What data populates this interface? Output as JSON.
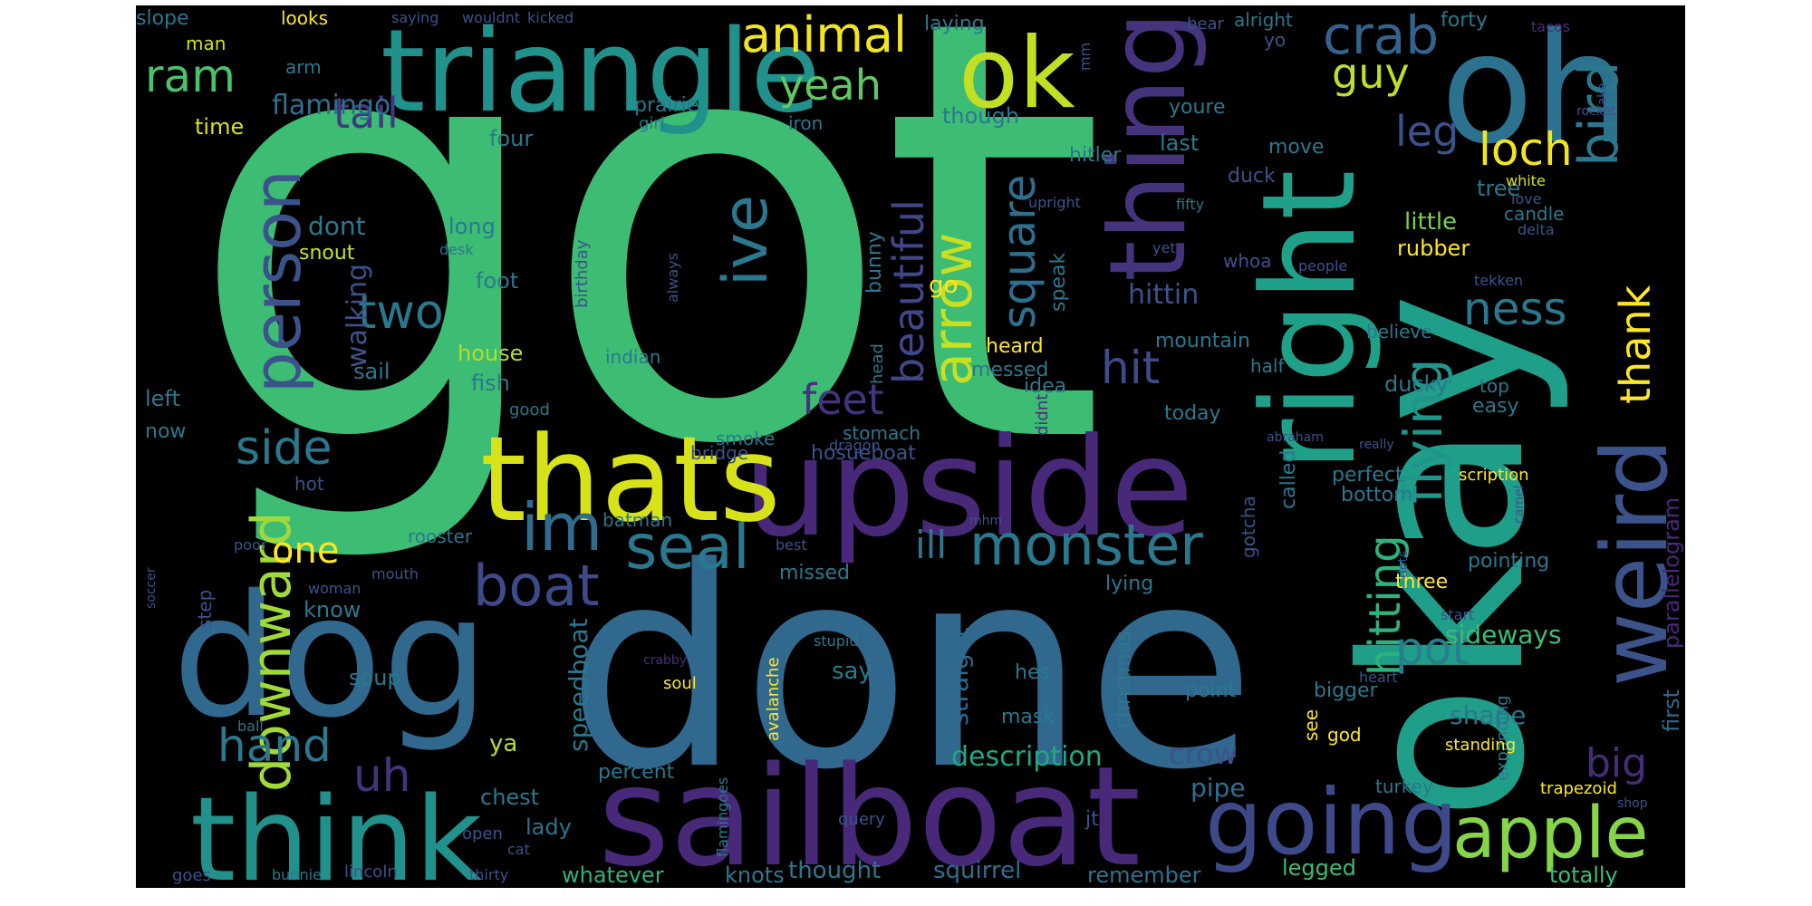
{
  "words": [
    {
      "text": "got",
      "color": "#3dbc74"
    },
    {
      "text": "done",
      "color": "#31688e"
    },
    {
      "text": "okay",
      "color": "#1f9e89"
    },
    {
      "text": "upside",
      "color": "#482878"
    },
    {
      "text": "sailboat",
      "color": "#482878"
    },
    {
      "text": "triangle",
      "color": "#21918c"
    },
    {
      "text": "dog",
      "color": "#31688e"
    },
    {
      "text": "think",
      "color": "#21918c"
    },
    {
      "text": "oh",
      "color": "#2c728e"
    },
    {
      "text": "thats",
      "color": "#d8e219"
    },
    {
      "text": "right",
      "color": "#1fa088"
    },
    {
      "text": "thing",
      "color": "#46337e"
    },
    {
      "text": "ok",
      "color": "#c2df23"
    },
    {
      "text": "weird",
      "color": "#3b528b"
    },
    {
      "text": "going",
      "color": "#3e4989"
    },
    {
      "text": "apple",
      "color": "#86d549"
    },
    {
      "text": "monster",
      "color": "#2a788e"
    },
    {
      "text": "seal",
      "color": "#2a788e"
    },
    {
      "text": "boat",
      "color": "#3e4989"
    },
    {
      "text": "downward",
      "color": "#a0da39"
    },
    {
      "text": "person",
      "color": "#3b528b"
    },
    {
      "text": "im",
      "color": "#2f6c8e"
    },
    {
      "text": "arrow",
      "color": "#c8e020"
    },
    {
      "text": "ive",
      "color": "#2a788e"
    },
    {
      "text": "beautiful",
      "color": "#3f4788"
    },
    {
      "text": "flying",
      "color": "#1f958b"
    },
    {
      "text": "hitting",
      "color": "#2db27d"
    },
    {
      "text": "loch",
      "color": "#f1e51d"
    },
    {
      "text": "bird",
      "color": "#2a788e"
    },
    {
      "text": "crab",
      "color": "#33638d"
    },
    {
      "text": "animal",
      "color": "#f1e51d"
    },
    {
      "text": "yeah",
      "color": "#5ec962"
    },
    {
      "text": "ram",
      "color": "#4ac16d"
    },
    {
      "text": "tail",
      "color": "#453781"
    },
    {
      "text": "two",
      "color": "#2a788e"
    },
    {
      "text": "side",
      "color": "#2a788e"
    },
    {
      "text": "hand",
      "color": "#2a788e"
    },
    {
      "text": "uh",
      "color": "#46337e"
    },
    {
      "text": "pot",
      "color": "#277f8e"
    },
    {
      "text": "ness",
      "color": "#2a788e"
    },
    {
      "text": "hit",
      "color": "#3e4a89"
    },
    {
      "text": "thank",
      "color": "#fde725"
    },
    {
      "text": "square",
      "color": "#2e6e8e"
    },
    {
      "text": "feet",
      "color": "#46337e"
    },
    {
      "text": "leg",
      "color": "#3b528b"
    },
    {
      "text": "guy",
      "color": "#bddf26"
    },
    {
      "text": "big",
      "color": "#472c7a"
    },
    {
      "text": "ill",
      "color": "#2a788e"
    },
    {
      "text": "one",
      "color": "#fde725"
    },
    {
      "text": "flamingo",
      "color": "#2e6e8e"
    },
    {
      "text": "walking",
      "color": "#3b528b"
    },
    {
      "text": "crow",
      "color": "#3b528b"
    },
    {
      "text": "description",
      "color": "#22a785"
    },
    {
      "text": "sideways",
      "color": "#3dbc74"
    },
    {
      "text": "shape",
      "color": "#2a788e"
    },
    {
      "text": "pipe",
      "color": "#2e6e8e"
    },
    {
      "text": "speedboat",
      "color": "#2a788e"
    },
    {
      "text": "straight",
      "color": "#31688e"
    },
    {
      "text": "hittin",
      "color": "#3b528b"
    },
    {
      "text": "rubber",
      "color": "#fde725"
    },
    {
      "text": "little",
      "color": "#7ad151"
    },
    {
      "text": "first",
      "color": "#31688e"
    },
    {
      "text": "parallelogram",
      "color": "#482878"
    },
    {
      "text": "go",
      "color": "#fde725"
    },
    {
      "text": "say",
      "color": "#2a788e"
    },
    {
      "text": "knots",
      "color": "#2a788e"
    },
    {
      "text": "whatever",
      "color": "#2db27d"
    },
    {
      "text": "thought",
      "color": "#2a788e"
    },
    {
      "text": "squirrel",
      "color": "#2e6e8e"
    },
    {
      "text": "remember",
      "color": "#2c728e"
    },
    {
      "text": "legged",
      "color": "#3dbc74"
    },
    {
      "text": "totally",
      "color": "#3dbc74"
    },
    {
      "text": "lady",
      "color": "#2c728e"
    },
    {
      "text": "chest",
      "color": "#2a788e"
    },
    {
      "text": "ya",
      "color": "#b5de2b"
    },
    {
      "text": "soup",
      "color": "#2a788e"
    },
    {
      "text": "fish",
      "color": "#2a788e"
    },
    {
      "text": "house",
      "color": "#b5de2b"
    },
    {
      "text": "foot",
      "color": "#2a788e"
    },
    {
      "text": "know",
      "color": "#2a788e"
    },
    {
      "text": "long",
      "color": "#2a788e"
    },
    {
      "text": "dont",
      "color": "#2a788e"
    },
    {
      "text": "snout",
      "color": "#cae11f"
    },
    {
      "text": "sail",
      "color": "#2a788e"
    },
    {
      "text": "left",
      "color": "#2a788e"
    },
    {
      "text": "now",
      "color": "#2a788e"
    },
    {
      "text": "time",
      "color": "#d5e21a"
    },
    {
      "text": "four",
      "color": "#2a788e"
    },
    {
      "text": "slope",
      "color": "#2a788e"
    },
    {
      "text": "man",
      "color": "#d2e21b"
    },
    {
      "text": "arm",
      "color": "#2a788e"
    },
    {
      "text": "looks",
      "color": "#fde725"
    },
    {
      "text": "saying",
      "color": "#3b528b"
    },
    {
      "text": "wouldnt",
      "color": "#3b528b"
    },
    {
      "text": "kicked",
      "color": "#3b528b"
    },
    {
      "text": "laying",
      "color": "#2a788e"
    },
    {
      "text": "prairie",
      "color": "#2a788e"
    },
    {
      "text": "girl",
      "color": "#2a788e"
    },
    {
      "text": "iron",
      "color": "#2a788e"
    },
    {
      "text": "though",
      "color": "#2a788e"
    },
    {
      "text": "youre",
      "color": "#2a788e"
    },
    {
      "text": "last",
      "color": "#2a788e"
    },
    {
      "text": "hitler",
      "color": "#2a788e"
    },
    {
      "text": "move",
      "color": "#2a788e"
    },
    {
      "text": "duck",
      "color": "#3b528b"
    },
    {
      "text": "tree",
      "color": "#2a788e"
    },
    {
      "text": "white",
      "color": "#d5e21a"
    },
    {
      "text": "love",
      "color": "#3b528b"
    },
    {
      "text": "candle",
      "color": "#2a788e"
    },
    {
      "text": "delta",
      "color": "#3b528b"
    },
    {
      "text": "forty",
      "color": "#2a788e"
    },
    {
      "text": "tacos",
      "color": "#472c7a"
    },
    {
      "text": "bear",
      "color": "#3b528b"
    },
    {
      "text": "alright",
      "color": "#2a788e"
    },
    {
      "text": "yo",
      "color": "#3b528b"
    },
    {
      "text": "mm",
      "color": "#3b528b"
    },
    {
      "text": "cake",
      "color": "#3b528b"
    },
    {
      "text": "rocket",
      "color": "#3b528b"
    },
    {
      "text": "upright",
      "color": "#3b528b"
    },
    {
      "text": "fifty",
      "color": "#2a788e"
    },
    {
      "text": "yet",
      "color": "#3b528b"
    },
    {
      "text": "whoa",
      "color": "#3b528b"
    },
    {
      "text": "people",
      "color": "#3b528b"
    },
    {
      "text": "tekken",
      "color": "#3b528b"
    },
    {
      "text": "believe",
      "color": "#2a788e"
    },
    {
      "text": "mountain",
      "color": "#2a788e"
    },
    {
      "text": "half",
      "color": "#2a788e"
    },
    {
      "text": "ducky",
      "color": "#2a788e"
    },
    {
      "text": "top",
      "color": "#2a788e"
    },
    {
      "text": "easy",
      "color": "#2a788e"
    },
    {
      "text": "heard",
      "color": "#fde725"
    },
    {
      "text": "messed",
      "color": "#2a788e"
    },
    {
      "text": "idea",
      "color": "#2a788e"
    },
    {
      "text": "didnt",
      "color": "#472c7a"
    },
    {
      "text": "today",
      "color": "#2a788e"
    },
    {
      "text": "abraham",
      "color": "#3b528b"
    },
    {
      "text": "really",
      "color": "#3b528b"
    },
    {
      "text": "stomach",
      "color": "#2a788e"
    },
    {
      "text": "perfect",
      "color": "#2a788e"
    },
    {
      "text": "scription",
      "color": "#fde725"
    },
    {
      "text": "bottom",
      "color": "#2a788e"
    },
    {
      "text": "called",
      "color": "#2a788e"
    },
    {
      "text": "gotcha",
      "color": "#3b528b"
    },
    {
      "text": "three",
      "color": "#fde725"
    },
    {
      "text": "pointing",
      "color": "#2a788e"
    },
    {
      "text": "camel",
      "color": "#3b528b"
    },
    {
      "text": "dots",
      "color": "#3b528b"
    },
    {
      "text": "start",
      "color": "#3b528b"
    },
    {
      "text": "heart",
      "color": "#3b528b"
    },
    {
      "text": "expanding",
      "color": "#2a788e"
    },
    {
      "text": "bigger",
      "color": "#2a788e"
    },
    {
      "text": "see",
      "color": "#fde725"
    },
    {
      "text": "god",
      "color": "#fde725"
    },
    {
      "text": "standing",
      "color": "#fde725"
    },
    {
      "text": "turkey",
      "color": "#2a788e"
    },
    {
      "text": "trapezoid",
      "color": "#fde725"
    },
    {
      "text": "shop",
      "color": "#3b528b"
    },
    {
      "text": "point",
      "color": "#2a788e"
    },
    {
      "text": "christmas",
      "color": "#2a788e"
    },
    {
      "text": "hes",
      "color": "#2a788e"
    },
    {
      "text": "mask",
      "color": "#2a788e"
    },
    {
      "text": "speak",
      "color": "#2a788e"
    },
    {
      "text": "lying",
      "color": "#2a788e"
    },
    {
      "text": "jt",
      "color": "#3b528b"
    },
    {
      "text": "query",
      "color": "#3b528b"
    },
    {
      "text": "percent",
      "color": "#2a788e"
    },
    {
      "text": "avalanche",
      "color": "#fde725"
    },
    {
      "text": "soul",
      "color": "#fde725"
    },
    {
      "text": "crabby",
      "color": "#472c7a"
    },
    {
      "text": "stupid",
      "color": "#2a788e"
    },
    {
      "text": "missed",
      "color": "#2a788e"
    },
    {
      "text": "best",
      "color": "#3b528b"
    },
    {
      "text": "batman",
      "color": "#2a788e"
    },
    {
      "text": "mhm",
      "color": "#3b528b"
    },
    {
      "text": "smoke",
      "color": "#2a788e"
    },
    {
      "text": "bridge",
      "color": "#3b528b"
    },
    {
      "text": "hosueboat",
      "color": "#3b528b"
    },
    {
      "text": "dragon",
      "color": "#3b528b"
    },
    {
      "text": "head",
      "color": "#2a788e"
    },
    {
      "text": "bunny",
      "color": "#2a788e"
    },
    {
      "text": "indian",
      "color": "#2a788e"
    },
    {
      "text": "birthday",
      "color": "#3b528b"
    },
    {
      "text": "always",
      "color": "#3b528b"
    },
    {
      "text": "good",
      "color": "#2a788e"
    },
    {
      "text": "hot",
      "color": "#3b528b"
    },
    {
      "text": "rooster",
      "color": "#2a788e"
    },
    {
      "text": "step",
      "color": "#3b528b"
    },
    {
      "text": "poor",
      "color": "#3b528b"
    },
    {
      "text": "woman",
      "color": "#3b528b"
    },
    {
      "text": "mouth",
      "color": "#3b528b"
    },
    {
      "text": "soccer",
      "color": "#3b528b"
    },
    {
      "text": "ball",
      "color": "#2a788e"
    },
    {
      "text": "open",
      "color": "#3b528b"
    },
    {
      "text": "cat",
      "color": "#3b528b"
    },
    {
      "text": "flamingoes",
      "color": "#2a788e"
    },
    {
      "text": "goes",
      "color": "#3b528b"
    },
    {
      "text": "bunnie",
      "color": "#2a788e"
    },
    {
      "text": "lincoln",
      "color": "#3b528b"
    },
    {
      "text": "thirty",
      "color": "#3b528b"
    },
    {
      "text": "desk",
      "color": "#2a788e"
    }
  ]
}
